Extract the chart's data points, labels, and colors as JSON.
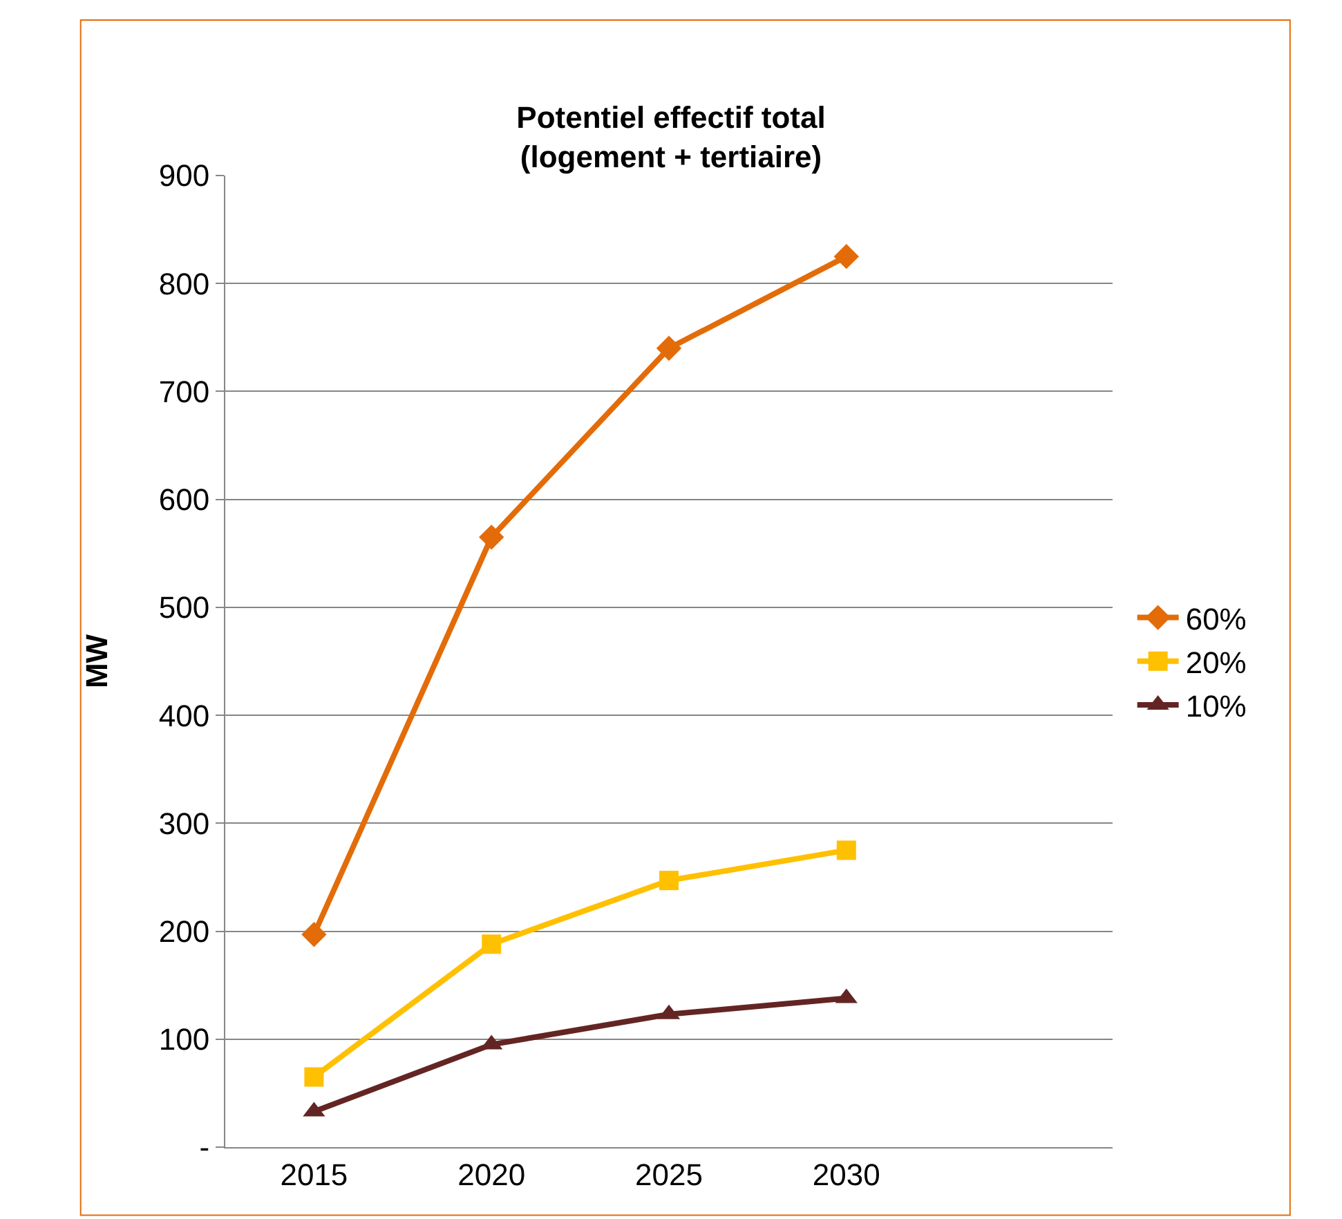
{
  "chart_data": {
    "type": "line",
    "title": "Potentiel effectif total\n(logement + tertiaire)",
    "ylabel": "MW",
    "categories": [
      "2015",
      "2020",
      "2025",
      "2030",
      null
    ],
    "series": [
      {
        "name": "60%",
        "color": "#e36c09",
        "values": [
          197,
          565,
          740,
          825,
          null
        ],
        "marker": "diamond"
      },
      {
        "name": "20%",
        "color": "#ffc000",
        "values": [
          65,
          188,
          247,
          275,
          null
        ],
        "marker": "square"
      },
      {
        "name": "10%",
        "color": "#632523",
        "values": [
          33,
          95,
          123,
          138,
          null
        ],
        "marker": "triangle"
      }
    ],
    "ylim": [
      0,
      900
    ],
    "yticks": [
      {
        "value": 0,
        "label": "-"
      },
      100,
      200,
      300,
      400,
      500,
      600,
      700,
      800,
      900
    ],
    "grid": "y",
    "legend": "right",
    "line_style": "solid"
  }
}
